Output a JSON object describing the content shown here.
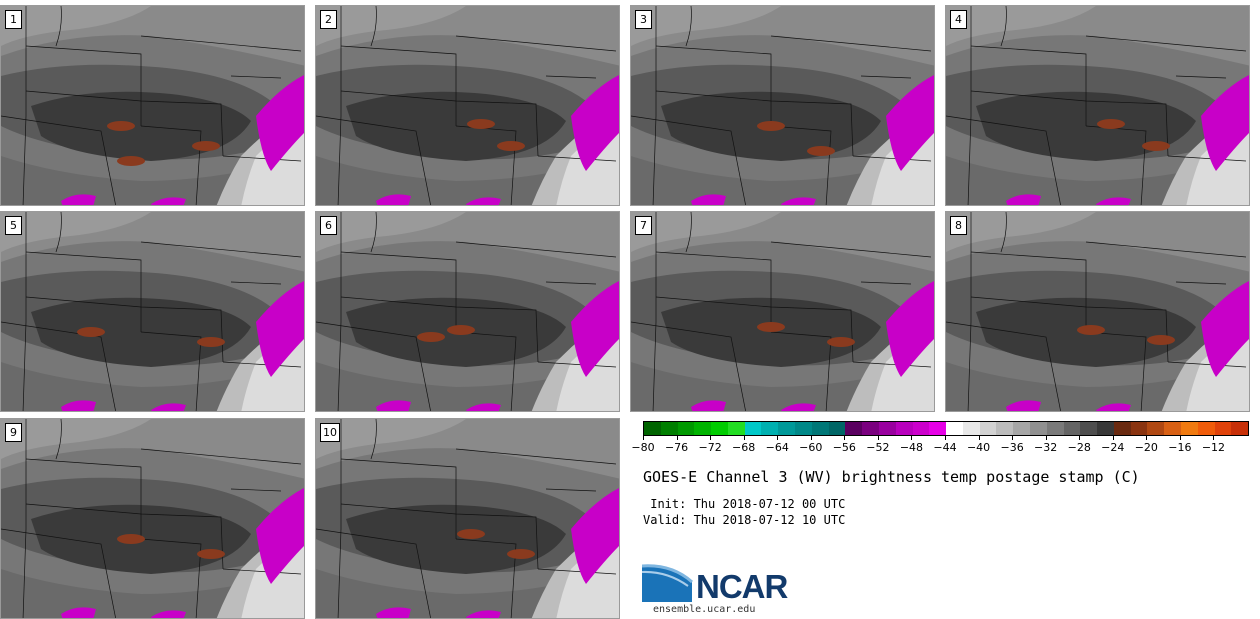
{
  "panels": [
    {
      "label": "1"
    },
    {
      "label": "2"
    },
    {
      "label": "3"
    },
    {
      "label": "4"
    },
    {
      "label": "5"
    },
    {
      "label": "6"
    },
    {
      "label": "7"
    },
    {
      "label": "8"
    },
    {
      "label": "9"
    },
    {
      "label": "10"
    }
  ],
  "colorbar": {
    "colors": [
      "#006400",
      "#007f00",
      "#009900",
      "#00b300",
      "#00cc00",
      "#22dd22",
      "#00c8c8",
      "#00b0b0",
      "#009999",
      "#008888",
      "#007777",
      "#006666",
      "#5a0060",
      "#7a007f",
      "#99009f",
      "#b800bd",
      "#cc00cc",
      "#e600e6",
      "#ffffff",
      "#e8e8e8",
      "#d2d2d2",
      "#bcbcbc",
      "#a6a6a6",
      "#909090",
      "#7a7a7a",
      "#646464",
      "#4e4e4e",
      "#383838",
      "#6a2a10",
      "#8a3410",
      "#b04812",
      "#d86014",
      "#f07a10",
      "#f05c0a",
      "#e0420a",
      "#c83008"
    ],
    "tick_labels": [
      "−80",
      "−76",
      "−72",
      "−68",
      "−64",
      "−60",
      "−56",
      "−52",
      "−48",
      "−44",
      "−40",
      "−36",
      "−32",
      "−28",
      "−24",
      "−20",
      "−16",
      "−12"
    ]
  },
  "title": "GOES-E Channel 3 (WV) brightness temp postage stamp (C)",
  "init": " Init: Thu 2018-07-12 00 UTC",
  "valid": "Valid: Thu 2018-07-12 10 UTC",
  "logo": {
    "text": "NCAR",
    "site": "ensemble.ucar.edu"
  }
}
